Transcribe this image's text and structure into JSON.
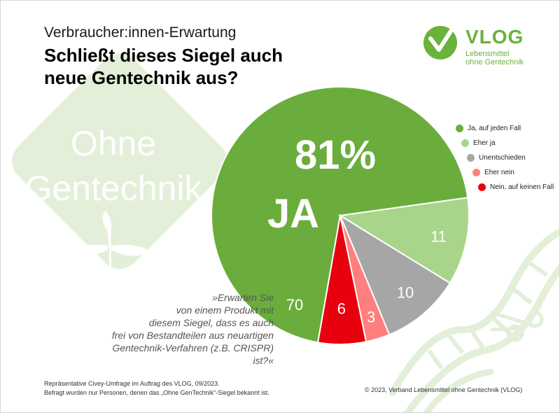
{
  "subtitle": "Verbraucher:innen-Erwartung",
  "title_line1": "Schließt dieses Siegel auch",
  "title_line2": "neue Gentechnik aus?",
  "logo": {
    "name": "VLOG",
    "tagline_line1": "Lebensmittel",
    "tagline_line2": "ohne Gentechnik",
    "color": "#6bb23a"
  },
  "seal": {
    "line1": "Ohne",
    "line2": "Gentechnik",
    "color": "#e3efd8"
  },
  "quote": {
    "lines": [
      "»Erwarten Sie",
      "von einem Produkt mit",
      "diesem Siegel, dass es auch",
      "frei von Bestandteilen aus neuartigen",
      "Gentechnik-Verfahren (z.B. CRISPR) ist?«"
    ]
  },
  "callout": {
    "percent": "81%",
    "label": "JA"
  },
  "footer": {
    "left_line1": "Repräsentative Civey-Umfrage im Auftrag des VLOG, 09/2023.",
    "left_line2": "Befragt wurden nur Personen, denen das „Ohne GenTechnik“-Siegel bekannt ist.",
    "right": "© 2023, Verband Lebensmittel ohne Gentechnik (VLOG)"
  },
  "chart_data": {
    "type": "pie",
    "title": "Schließt dieses Siegel auch neue Gentechnik aus?",
    "slices": [
      {
        "label": "Ja, auf jeden Fall",
        "value": 70,
        "color": "#6aad3d"
      },
      {
        "label": "Eher ja",
        "value": 11,
        "color": "#a8d58a"
      },
      {
        "label": "Unentschieden",
        "value": 10,
        "color": "#a6a6a6"
      },
      {
        "label": "Eher nein",
        "value": 3,
        "color": "#ff7f7f"
      },
      {
        "label": "Nein, auf keinen Fall",
        "value": 6,
        "color": "#e8000e"
      }
    ],
    "legend_position": "right"
  }
}
